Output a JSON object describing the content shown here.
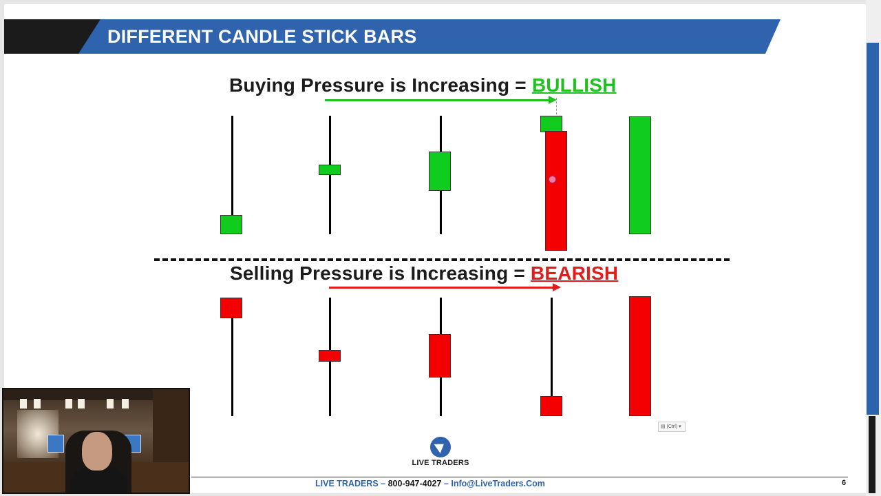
{
  "slide": {
    "title": "DIFFERENT CANDLE STICK BARS",
    "colors": {
      "header_blue": "#2f63ae",
      "header_black": "#1b1b1b",
      "bullish_green": "#1fc01f",
      "bearish_red": "#e21b1b",
      "candle_green": "#0fcc1f",
      "candle_red": "#f40000"
    }
  },
  "bullish": {
    "heading_text": "Buying Pressure is Increasing = ",
    "keyword": "BULLISH"
  },
  "bearish": {
    "heading_text": "Selling Pressure is Increasing = ",
    "keyword": "BEARISH"
  },
  "paste_options": {
    "label": "(Ctrl) ▾",
    "icon": "clipboard-icon"
  },
  "logo": {
    "text": "LIVE TRADERS",
    "icon": "bull-logo-icon"
  },
  "footer": {
    "brand": "LIVE TRADERS",
    "sep1": " – ",
    "phone": "800-947-4027",
    "sep2": " – ",
    "email": "Info@LiveTraders.Com",
    "page_number": "6"
  }
}
